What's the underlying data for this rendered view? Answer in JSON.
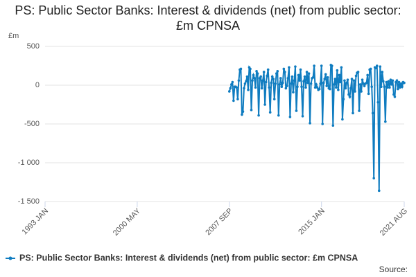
{
  "chart_data": {
    "type": "line",
    "title": "PS: Public Sector Banks: Interest & dividends (net) from public sector: £m CPNSA",
    "y_label": "£m",
    "source": "Source:",
    "xlim": [
      "1993 JAN",
      "2021 AUG"
    ],
    "xticks": [
      "1993 JAN",
      "2000 MAY",
      "2007 SEP",
      "2015 JAN",
      "2021 AUG"
    ],
    "ylim": [
      -1500,
      500
    ],
    "yticks": [
      {
        "value": -1500,
        "label": "-1 500"
      },
      {
        "value": -1000,
        "label": "-1 000"
      },
      -500,
      0,
      500
    ],
    "grid": true,
    "legend": "bottom",
    "x": [
      "2007 SEP",
      "2007 OCT",
      "2007 NOV",
      "2007 DEC",
      "2008 JAN",
      "2008 FEB",
      "2008 MAR",
      "2008 APR",
      "2008 MAY",
      "2008 JUN",
      "2008 JUL",
      "2008 AUG",
      "2008 SEP",
      "2008 OCT",
      "2008 NOV",
      "2008 DEC",
      "2009 JAN",
      "2009 FEB",
      "2009 MAR",
      "2009 APR",
      "2009 MAY",
      "2009 JUN",
      "2009 JUL",
      "2009 AUG",
      "2009 SEP",
      "2009 OCT",
      "2009 NOV",
      "2009 DEC",
      "2010 JAN",
      "2010 FEB",
      "2010 MAR",
      "2010 APR",
      "2010 MAY",
      "2010 JUN",
      "2010 JUL",
      "2010 AUG",
      "2010 SEP",
      "2010 OCT",
      "2010 NOV",
      "2010 DEC",
      "2011 JAN",
      "2011 FEB",
      "2011 MAR",
      "2011 APR",
      "2011 MAY",
      "2011 JUN",
      "2011 JUL",
      "2011 AUG",
      "2011 SEP",
      "2011 OCT",
      "2011 NOV",
      "2011 DEC",
      "2012 JAN",
      "2012 FEB",
      "2012 MAR",
      "2012 APR",
      "2012 MAY",
      "2012 JUN",
      "2012 JUL",
      "2012 AUG",
      "2012 SEP",
      "2012 OCT",
      "2012 NOV",
      "2012 DEC",
      "2013 JAN",
      "2013 FEB",
      "2013 MAR",
      "2013 APR",
      "2013 MAY",
      "2013 JUN",
      "2013 JUL",
      "2013 AUG",
      "2013 SEP",
      "2013 OCT",
      "2013 NOV",
      "2013 DEC",
      "2014 JAN",
      "2014 FEB",
      "2014 MAR",
      "2014 APR",
      "2014 MAY",
      "2014 JUN",
      "2014 JUL",
      "2014 AUG",
      "2014 SEP",
      "2014 OCT",
      "2014 NOV",
      "2014 DEC",
      "2015 JAN",
      "2015 FEB",
      "2015 MAR",
      "2015 APR",
      "2015 MAY",
      "2015 JUN",
      "2015 JUL",
      "2015 AUG",
      "2015 SEP",
      "2015 OCT",
      "2015 NOV",
      "2015 DEC",
      "2016 JAN",
      "2016 FEB",
      "2016 MAR",
      "2016 APR",
      "2016 MAY",
      "2016 JUN",
      "2016 JUL",
      "2016 AUG",
      "2016 SEP",
      "2016 OCT",
      "2016 NOV",
      "2016 DEC",
      "2017 JAN",
      "2017 FEB",
      "2017 MAR",
      "2017 APR",
      "2017 MAY",
      "2017 JUN",
      "2017 JUL",
      "2017 AUG",
      "2017 SEP",
      "2017 OCT",
      "2017 NOV",
      "2017 DEC",
      "2018 JAN",
      "2018 FEB",
      "2018 MAR",
      "2018 APR",
      "2018 MAY",
      "2018 JUN",
      "2018 JUL",
      "2018 AUG",
      "2018 SEP",
      "2018 OCT",
      "2018 NOV",
      "2018 DEC",
      "2019 JAN",
      "2019 FEB",
      "2019 MAR",
      "2019 APR",
      "2019 MAY",
      "2019 JUN",
      "2019 JUL",
      "2019 AUG",
      "2019 SEP",
      "2019 OCT",
      "2019 NOV",
      "2019 DEC",
      "2020 JAN",
      "2020 FEB",
      "2020 MAR",
      "2020 APR",
      "2020 MAY",
      "2020 JUN",
      "2020 JUL",
      "2020 AUG",
      "2020 SEP",
      "2020 OCT",
      "2020 NOV",
      "2020 DEC",
      "2021 JAN",
      "2021 FEB",
      "2021 MAR",
      "2021 APR",
      "2021 MAY",
      "2021 JUN",
      "2021 JUL",
      "2021 AUG"
    ],
    "series": [
      {
        "name": "PS: Public Sector Banks: Interest & dividends (net) from public sector: £m CPNSA",
        "color": "#0f7cc0",
        "values": [
          -80,
          -40,
          10,
          40,
          -200,
          -20,
          -20,
          -30,
          -180,
          60,
          200,
          210,
          -380,
          -340,
          -40,
          20,
          50,
          110,
          -60,
          230,
          210,
          -320,
          60,
          130,
          90,
          -30,
          180,
          150,
          -390,
          90,
          110,
          -40,
          60,
          170,
          -250,
          40,
          120,
          200,
          -30,
          -350,
          30,
          110,
          80,
          -180,
          20,
          150,
          180,
          -390,
          10,
          90,
          -20,
          30,
          210,
          170,
          -40,
          -10,
          90,
          230,
          -410,
          20,
          110,
          -90,
          60,
          240,
          -330,
          -20,
          130,
          60,
          200,
          -20,
          -400,
          50,
          110,
          -30,
          170,
          30,
          150,
          -490,
          20,
          90,
          100,
          250,
          -30,
          10,
          -30,
          -60,
          -50,
          20,
          250,
          -500,
          30,
          80,
          140,
          -10,
          100,
          -40,
          -50,
          260,
          250,
          -520,
          10,
          80,
          -30,
          190,
          -60,
          130,
          40,
          230,
          -440,
          -180,
          60,
          -40,
          30,
          70,
          -120,
          -150,
          -40,
          80,
          -360,
          60,
          -80,
          120,
          160,
          170,
          -330,
          10,
          -80,
          70,
          20,
          -10,
          20,
          30,
          130,
          -110,
          200,
          210,
          -20,
          -360,
          -1200,
          230,
          220,
          250,
          -220,
          -1360,
          240,
          -20,
          170,
          50,
          -20,
          -470,
          40,
          -30,
          50,
          -30,
          70,
          10,
          60,
          -120,
          -150,
          40,
          60,
          -50,
          40,
          -30,
          20,
          -20,
          40,
          30
        ]
      }
    ]
  }
}
